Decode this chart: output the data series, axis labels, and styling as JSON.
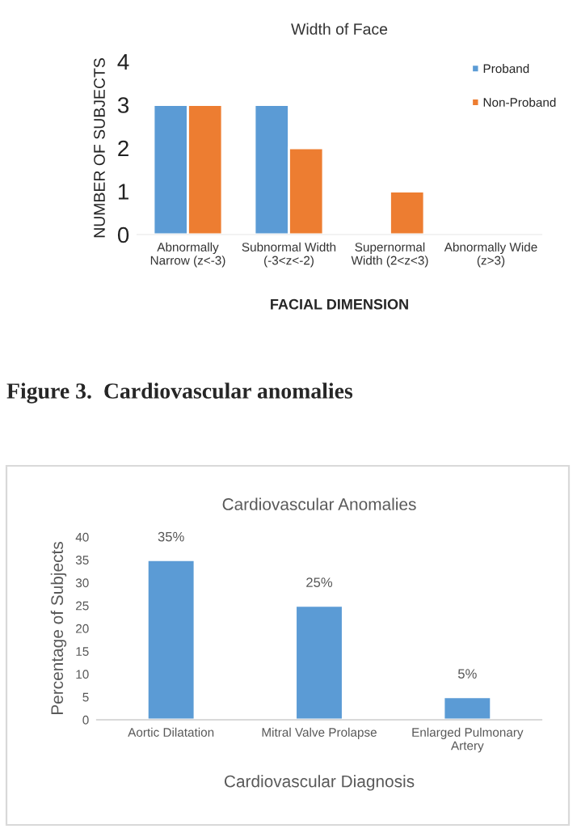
{
  "chart_data": [
    {
      "type": "bar",
      "title": "Width of Face",
      "xlabel": "FACIAL DIMENSION",
      "ylabel": "NUMBER OF SUBJECTS",
      "categories": [
        "Abnormally\nNarrow (z<-3)",
        "Subnormal Width\n(-3<z<-2)",
        "Supernormal\nWidth (2<z<3)",
        "Abnormally Wide\n(z>3)"
      ],
      "series": [
        {
          "name": "Proband",
          "color": "#5b9bd5",
          "values": [
            3,
            3,
            null,
            null
          ]
        },
        {
          "name": "Non-Proband",
          "color": "#ed7d31",
          "values": [
            3,
            2,
            1,
            null
          ]
        }
      ],
      "ylim": [
        0,
        4
      ],
      "yticks": [
        0,
        1,
        2,
        3,
        4
      ],
      "grid": false,
      "legend": "top right"
    },
    {
      "type": "bar",
      "title": "Cardiovascular Anomalies",
      "xlabel": "Cardiovascular Diagnosis",
      "ylabel": "Percentage of Subjects",
      "categories": [
        "Aortic Dilatation",
        "Mitral Valve Prolapse",
        "Enlarged Pulmonary\nArtery"
      ],
      "values": [
        35,
        25,
        5
      ],
      "color": "#5b9bd5",
      "value_labels": [
        "35%",
        "25%",
        "5%"
      ],
      "ylim": [
        0,
        40
      ],
      "yticks": [
        0,
        5,
        10,
        15,
        20,
        25,
        30,
        35,
        40
      ],
      "grid": false,
      "legend": false,
      "annotations": [
        "Figure 3.  Cardiovascular anomalies"
      ]
    }
  ]
}
